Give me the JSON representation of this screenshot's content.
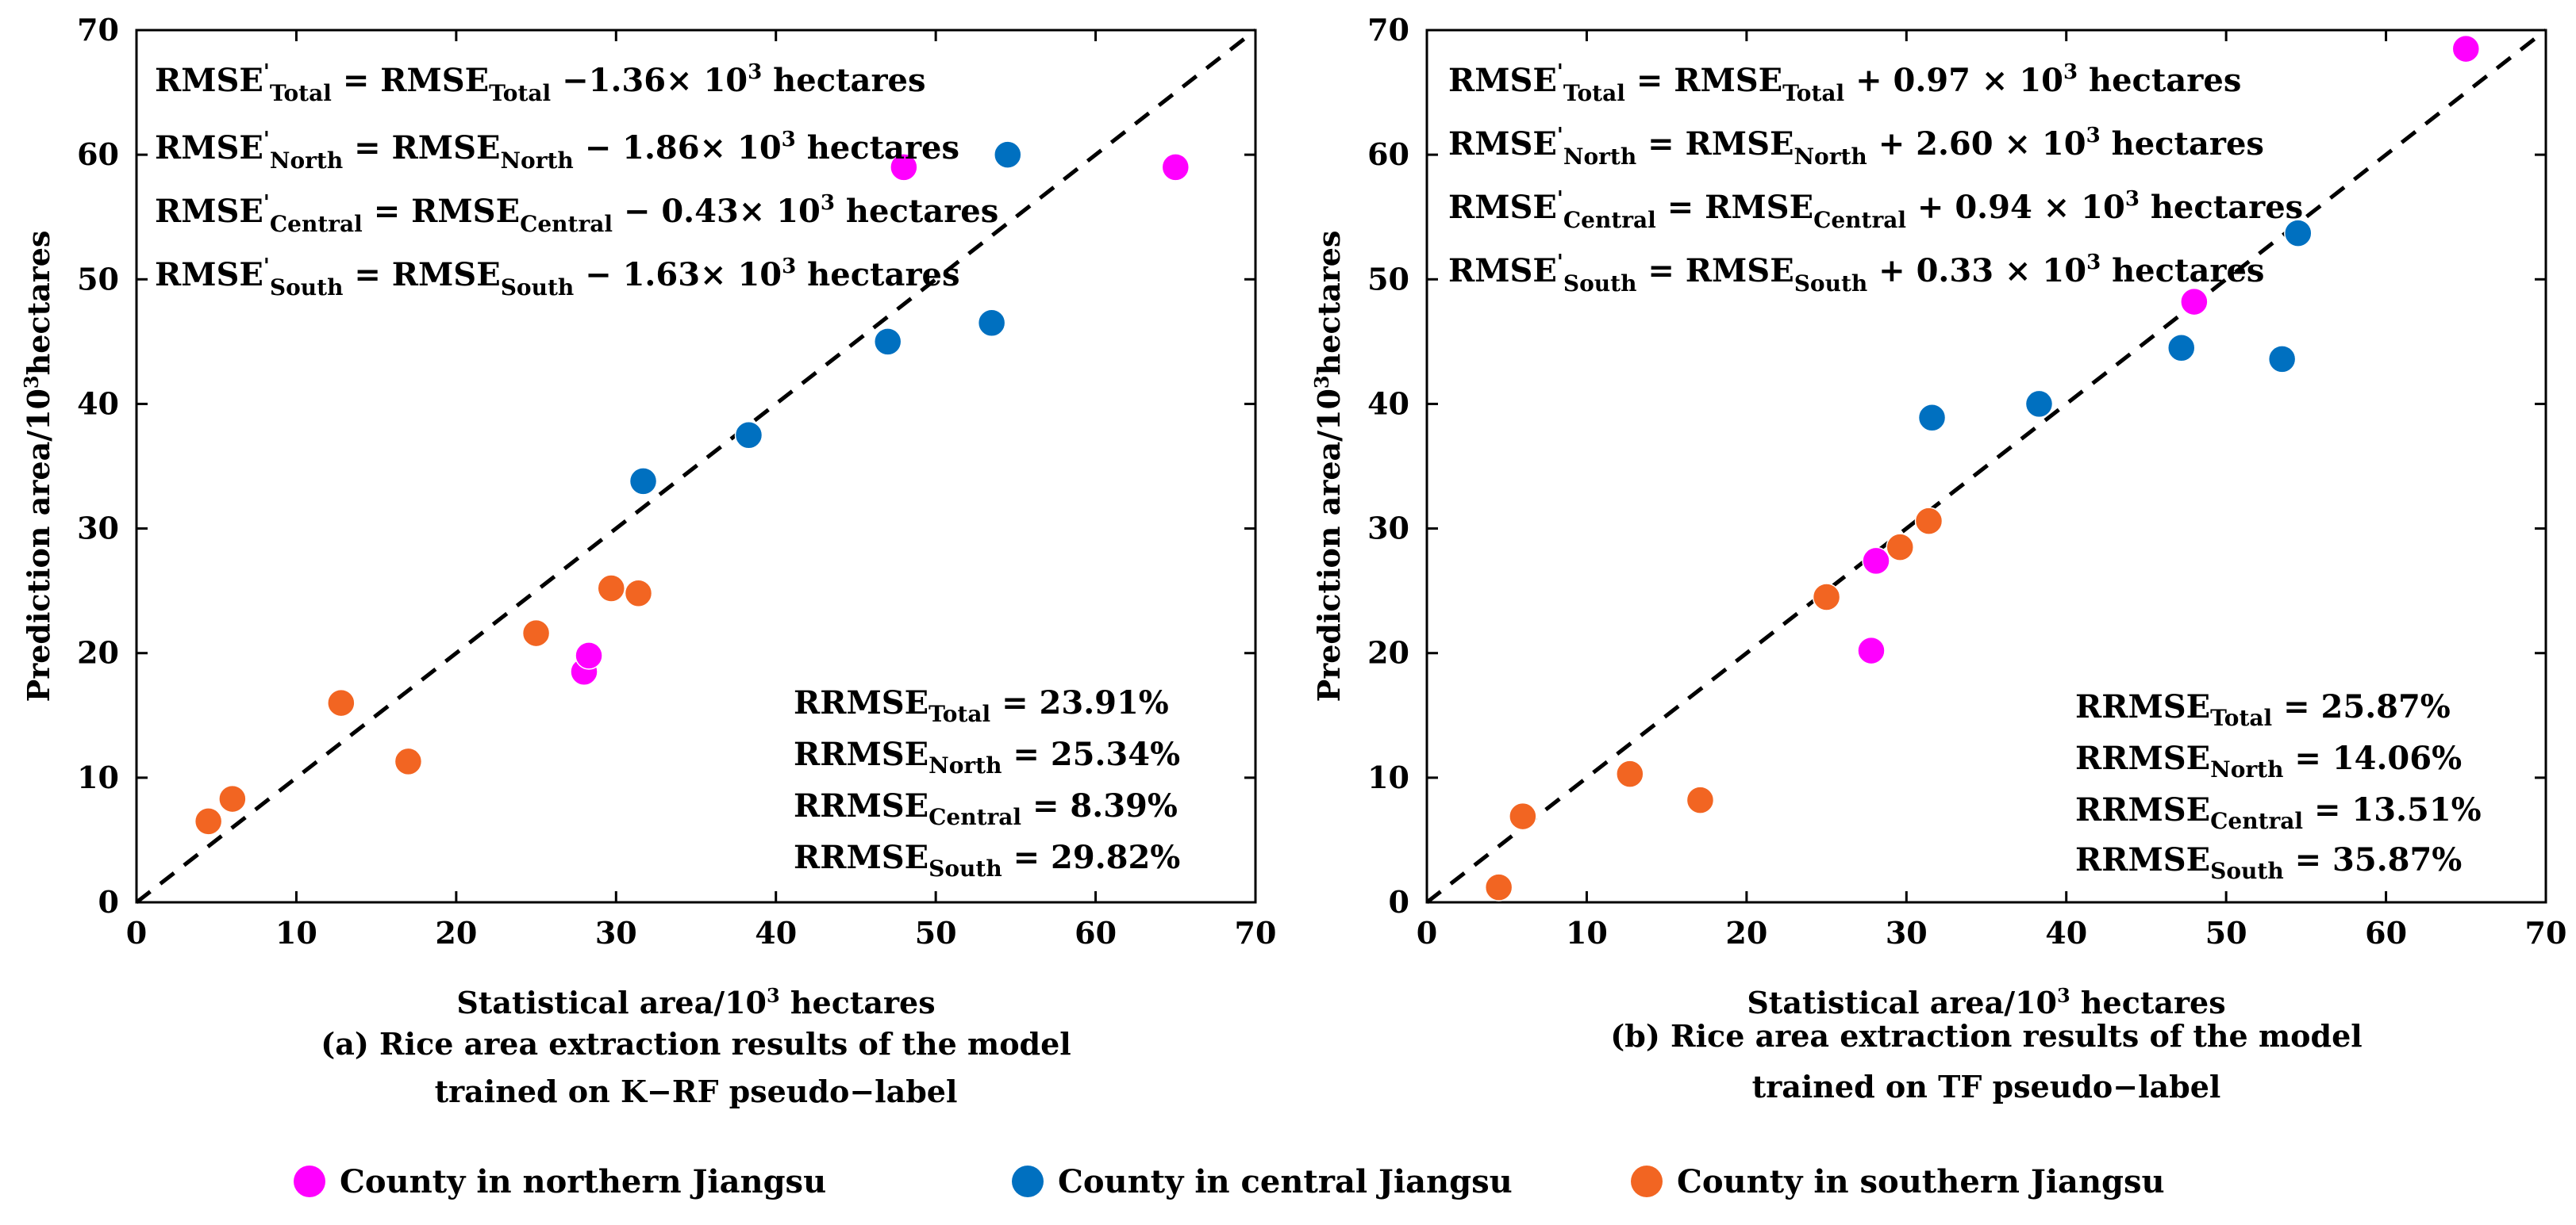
{
  "chart_data": [
    {
      "type": "scatter",
      "panel_label": "(a)",
      "caption_lines": [
        "(a) Rice area extraction results of the model",
        "trained on K−RF pseudo−label"
      ],
      "xlabel": {
        "main": "Statistical area/10",
        "sup": "3",
        "rest": " hectares"
      },
      "ylabel": {
        "main": "Prediction area/10",
        "sup": "3",
        "rest": "hectares"
      },
      "xlim": [
        0,
        70
      ],
      "ylim": [
        0,
        70
      ],
      "xticks": [
        "0",
        "10",
        "20",
        "30",
        "40",
        "50",
        "60",
        "70"
      ],
      "yticks": [
        "0",
        "10",
        "20",
        "30",
        "40",
        "50",
        "60",
        "70"
      ],
      "reference_line": "y = x",
      "series": [
        {
          "name": "County in northern Jiangsu",
          "color": "#ff00ff",
          "points": [
            [
              48,
              59
            ],
            [
              65,
              59
            ],
            [
              28,
              18.5
            ],
            [
              28.3,
              19.8
            ]
          ]
        },
        {
          "name": "County in central Jiangsu",
          "color": "#0070c0",
          "points": [
            [
              54.5,
              60
            ],
            [
              47,
              45
            ],
            [
              53.5,
              46.5
            ],
            [
              38.3,
              37.5
            ],
            [
              31.7,
              33.8
            ]
          ]
        },
        {
          "name": "County in southern Jiangsu",
          "color": "#f26522",
          "points": [
            [
              4.5,
              6.5
            ],
            [
              6,
              8.3
            ],
            [
              12.8,
              16
            ],
            [
              17,
              11.3
            ],
            [
              25,
              21.6
            ],
            [
              29.7,
              25.2
            ],
            [
              31.4,
              24.8
            ]
          ]
        }
      ],
      "rmse_lines": [
        {
          "base": "RMSE",
          "sub1": "Total",
          "mid": " = RMSE",
          "sub2": "Total",
          "tail": " −1.36× 10",
          "sup": "3",
          "end": " hectares"
        },
        {
          "base": "RMSE",
          "sub1": "North",
          "mid": " = RMSE",
          "sub2": "North",
          "tail": " −  1.86× 10",
          "sup": "3",
          "end": " hectares"
        },
        {
          "base": "RMSE",
          "sub1": "Central",
          "mid": " = RMSE",
          "sub2": "Central",
          "tail": " −  0.43× 10",
          "sup": "3",
          "end": " hectares"
        },
        {
          "base": "RMSE",
          "sub1": "South",
          "mid": " = RMSE",
          "sub2": "South",
          "tail": " −  1.63× 10",
          "sup": "3",
          "end": " hectares"
        }
      ],
      "rrmse_lines": [
        {
          "base": "RRMSE",
          "sub": "Total",
          "value": " = 23.91%"
        },
        {
          "base": "RRMSE",
          "sub": "North",
          "value": " = 25.34%"
        },
        {
          "base": "RRMSE",
          "sub": "Central",
          "value": " = 8.39%"
        },
        {
          "base": "RRMSE",
          "sub": "South",
          "value": " = 29.82%"
        }
      ]
    },
    {
      "type": "scatter",
      "panel_label": "(b)",
      "caption_lines": [
        "(b) Rice area extraction results of the model",
        "trained on TF pseudo−label"
      ],
      "xlabel": {
        "main": "Statistical area/10",
        "sup": "3",
        "rest": " hectares"
      },
      "ylabel": {
        "main": "Prediction area/10",
        "sup": "3",
        "rest": "hectares"
      },
      "xlim": [
        0,
        70
      ],
      "ylim": [
        0,
        70
      ],
      "xticks": [
        "0",
        "10",
        "20",
        "30",
        "40",
        "50",
        "60",
        "70"
      ],
      "yticks": [
        "0",
        "10",
        "20",
        "30",
        "40",
        "50",
        "60",
        "70"
      ],
      "reference_line": "y = x",
      "series": [
        {
          "name": "County in northern Jiangsu",
          "color": "#ff00ff",
          "points": [
            [
              65,
              68.5
            ],
            [
              48,
              48.2
            ],
            [
              28.1,
              27.4
            ],
            [
              27.8,
              20.2
            ]
          ]
        },
        {
          "name": "County in central Jiangsu",
          "color": "#0070c0",
          "points": [
            [
              54.5,
              53.7
            ],
            [
              47.2,
              44.5
            ],
            [
              53.5,
              43.6
            ],
            [
              38.3,
              40
            ],
            [
              31.6,
              38.9
            ]
          ]
        },
        {
          "name": "County in southern Jiangsu",
          "color": "#f26522",
          "points": [
            [
              4.5,
              1.2
            ],
            [
              6,
              6.9
            ],
            [
              12.7,
              10.3
            ],
            [
              17.1,
              8.2
            ],
            [
              25,
              24.5
            ],
            [
              29.6,
              28.5
            ],
            [
              31.4,
              30.6
            ]
          ]
        }
      ],
      "rmse_lines": [
        {
          "base": "RMSE",
          "sub1": "Total",
          "mid": " = RMSE",
          "sub2": "Total",
          "tail": " + 0.97 × 10",
          "sup": "3",
          "end": " hectares"
        },
        {
          "base": "RMSE",
          "sub1": "North",
          "mid": " = RMSE",
          "sub2": "North",
          "tail": " + 2.60 × 10",
          "sup": "3",
          "end": " hectares"
        },
        {
          "base": "RMSE",
          "sub1": "Central",
          "mid": " =  RMSE",
          "sub2": "Central",
          "tail": " + 0.94 × 10",
          "sup": "3",
          "end": " hectares"
        },
        {
          "base": "RMSE",
          "sub1": "South",
          "mid": " =  RMSE",
          "sub2": "South",
          "tail": " + 0.33 × 10",
          "sup": "3",
          "end": " hectares"
        }
      ],
      "rrmse_lines": [
        {
          "base": "RRMSE",
          "sub": "Total",
          "value": " = 25.87%"
        },
        {
          "base": "RRMSE",
          "sub": "North",
          "value": " = 14.06%"
        },
        {
          "base": "RRMSE",
          "sub": "Central",
          "value": " = 13.51%"
        },
        {
          "base": "RRMSE",
          "sub": "South",
          "value": " = 35.87%"
        }
      ]
    }
  ],
  "legend": {
    "items": [
      {
        "label": "County in northern Jiangsu",
        "color": "#ff00ff"
      },
      {
        "label": "County in central Jiangsu",
        "color": "#0070c0"
      },
      {
        "label": "County in southern Jiangsu",
        "color": "#f26522"
      }
    ]
  }
}
